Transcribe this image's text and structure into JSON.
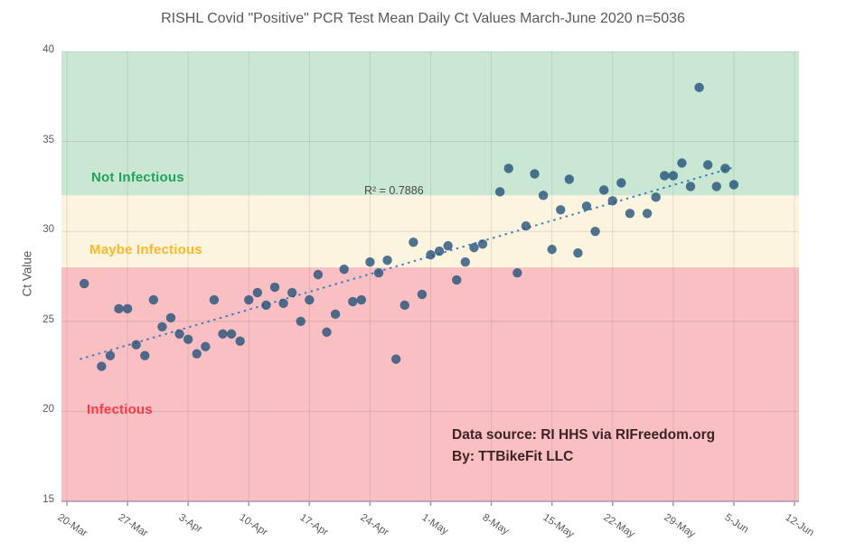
{
  "title": "RISHL Covid \"Positive\" PCR Test Mean Daily Ct Values March-June 2020 n=5036",
  "chart_data": {
    "type": "scatter",
    "title": "RISHL Covid \"Positive\" PCR Test Mean Daily Ct Values March-June 2020 n=5036",
    "xlabel": "",
    "ylabel": "Ct Value",
    "ylim": [
      15,
      40
    ],
    "y_ticks": [
      15,
      20,
      25,
      30,
      35,
      40
    ],
    "xlim_days": [
      0,
      84
    ],
    "x_tick_days": [
      0,
      7,
      14,
      21,
      28,
      35,
      42,
      49,
      56,
      63,
      70,
      77,
      84
    ],
    "x_tick_labels": [
      "20-Mar",
      "27-Mar",
      "3-Apr",
      "10-Apr",
      "17-Apr",
      "24-Apr",
      "1-May",
      "8-May",
      "15-May",
      "22-May",
      "29-May",
      "5-Jun",
      "12-Jun"
    ],
    "grid": true,
    "legend": "none",
    "bands": [
      {
        "name": "not-infectious",
        "label": "Not Infectious",
        "from": 32,
        "to": 40,
        "fill": "#c9e7d3",
        "label_color": "#22a35c"
      },
      {
        "name": "maybe-infectious",
        "label": "Maybe Infectious",
        "from": 28,
        "to": 32,
        "fill": "#fdf4df",
        "label_color": "#fcb827"
      },
      {
        "name": "infectious",
        "label": "Infectious",
        "from": 15,
        "to": 28,
        "fill": "#f9bfc3",
        "label_color": "#fa3a42"
      }
    ],
    "marker_color": "rgba(31,78,121,0.78)",
    "point_format": [
      "date",
      "day_index_from_20_Mar",
      "ct_value"
    ],
    "points": [
      [
        "22-Mar",
        2,
        27.1
      ],
      [
        "24-Mar",
        4,
        22.5
      ],
      [
        "25-Mar",
        5,
        23.1
      ],
      [
        "26-Mar",
        6,
        25.7
      ],
      [
        "27-Mar",
        7,
        25.7
      ],
      [
        "28-Mar",
        8,
        23.7
      ],
      [
        "29-Mar",
        9,
        23.1
      ],
      [
        "30-Mar",
        10,
        26.2
      ],
      [
        "31-Mar",
        11,
        24.7
      ],
      [
        "1-Apr",
        12,
        25.2
      ],
      [
        "2-Apr",
        13,
        24.3
      ],
      [
        "3-Apr",
        14,
        24.0
      ],
      [
        "4-Apr",
        15,
        23.2
      ],
      [
        "5-Apr",
        16,
        23.6
      ],
      [
        "6-Apr",
        17,
        26.2
      ],
      [
        "7-Apr",
        18,
        24.3
      ],
      [
        "8-Apr",
        19,
        24.3
      ],
      [
        "9-Apr",
        20,
        23.9
      ],
      [
        "10-Apr",
        21,
        26.2
      ],
      [
        "11-Apr",
        22,
        26.6
      ],
      [
        "12-Apr",
        23,
        25.9
      ],
      [
        "13-Apr",
        24,
        26.9
      ],
      [
        "14-Apr",
        25,
        26.0
      ],
      [
        "15-Apr",
        26,
        26.6
      ],
      [
        "16-Apr",
        27,
        25.0
      ],
      [
        "17-Apr",
        28,
        26.2
      ],
      [
        "18-Apr",
        29,
        27.6
      ],
      [
        "19-Apr",
        30,
        24.4
      ],
      [
        "20-Apr",
        31,
        25.4
      ],
      [
        "21-Apr",
        32,
        27.9
      ],
      [
        "22-Apr",
        33,
        26.1
      ],
      [
        "23-Apr",
        34,
        26.2
      ],
      [
        "24-Apr",
        35,
        28.3
      ],
      [
        "25-Apr",
        36,
        27.7
      ],
      [
        "26-Apr",
        37,
        28.4
      ],
      [
        "27-Apr",
        38,
        22.9
      ],
      [
        "28-Apr",
        39,
        25.9
      ],
      [
        "29-Apr",
        40,
        29.4
      ],
      [
        "30-Apr",
        41,
        26.5
      ],
      [
        "1-May",
        42,
        28.7
      ],
      [
        "2-May",
        43,
        28.9
      ],
      [
        "3-May",
        44,
        29.2
      ],
      [
        "4-May",
        45,
        27.3
      ],
      [
        "5-May",
        46,
        28.3
      ],
      [
        "6-May",
        47,
        29.1
      ],
      [
        "7-May",
        48,
        29.3
      ],
      [
        "9-May",
        50,
        32.2
      ],
      [
        "10-May",
        51,
        33.5
      ],
      [
        "11-May",
        52,
        27.7
      ],
      [
        "12-May",
        53,
        30.3
      ],
      [
        "13-May",
        54,
        33.2
      ],
      [
        "14-May",
        55,
        32.0
      ],
      [
        "15-May",
        56,
        29.0
      ],
      [
        "16-May",
        57,
        31.2
      ],
      [
        "17-May",
        58,
        32.9
      ],
      [
        "18-May",
        59,
        28.8
      ],
      [
        "19-May",
        60,
        31.4
      ],
      [
        "20-May",
        61,
        30.0
      ],
      [
        "21-May",
        62,
        32.3
      ],
      [
        "22-May",
        63,
        31.7
      ],
      [
        "23-May",
        64,
        32.7
      ],
      [
        "24-May",
        65,
        31.0
      ],
      [
        "26-May",
        67,
        31.0
      ],
      [
        "27-May",
        68,
        31.9
      ],
      [
        "28-May",
        69,
        33.1
      ],
      [
        "29-May",
        70,
        33.1
      ],
      [
        "30-May",
        71,
        33.8
      ],
      [
        "31-May",
        72,
        32.5
      ],
      [
        "1-Jun",
        73,
        38.0
      ],
      [
        "2-Jun",
        74,
        33.7
      ],
      [
        "3-Jun",
        75,
        32.5
      ],
      [
        "4-Jun",
        76,
        33.5
      ],
      [
        "5-Jun",
        77,
        32.6
      ]
    ],
    "trendline": {
      "style": "dotted",
      "color": "rgba(46,117,182,0.9)",
      "r2_label": "R² = 0.7886",
      "day_start": 1.5,
      "ct_start": 22.9,
      "day_end": 76.9,
      "ct_end": 33.55
    },
    "source_note": {
      "line1": "Data source: RI HHS via RIFreedom.org",
      "line2": "By: TTBikeFit LLC"
    }
  }
}
